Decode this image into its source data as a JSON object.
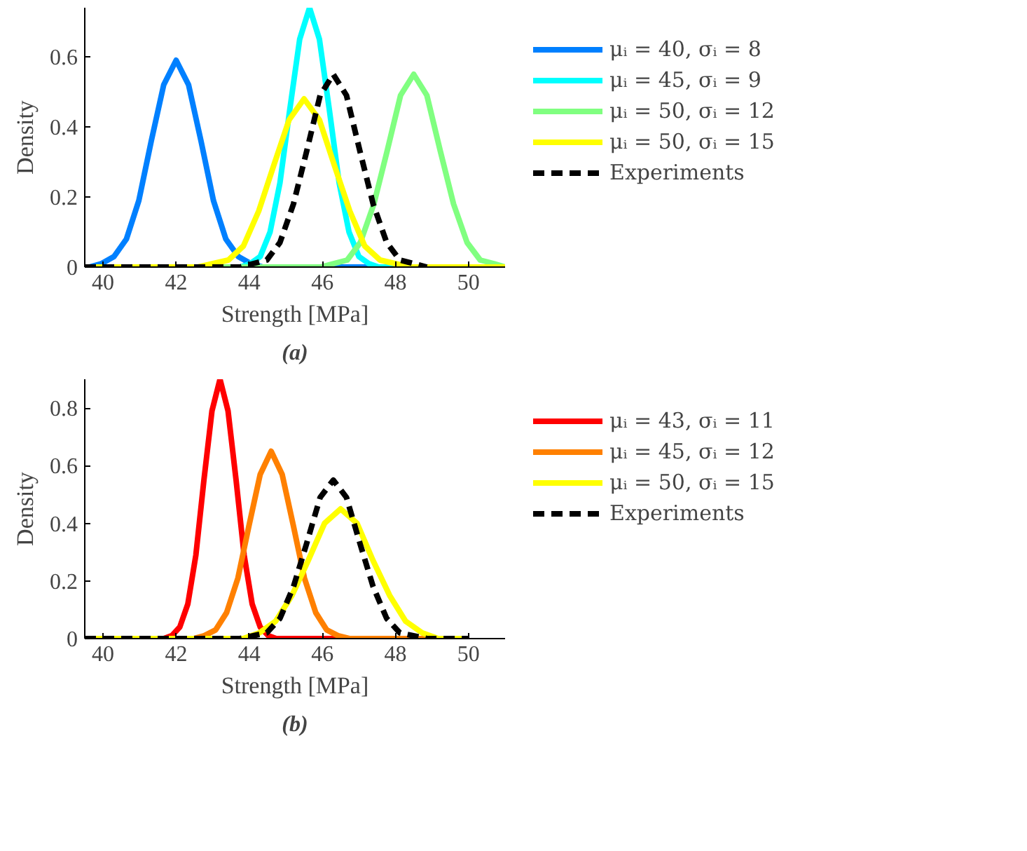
{
  "chart_data": [
    {
      "type": "line",
      "xlabel": "Strength [MPa]",
      "ylabel": "Density",
      "annotations": [
        "(a)"
      ],
      "xlim": [
        39.5,
        51
      ],
      "ylim": [
        0,
        0.74
      ],
      "xticks": [
        40,
        42,
        44,
        46,
        48,
        50
      ],
      "yticks": [
        0,
        0.2,
        0.4,
        0.6
      ],
      "grid": false,
      "legend": "right",
      "series": [
        {
          "name": "μᵢ = 40, σᵢ = 8",
          "color": "#0080ff",
          "x": [
            39.5,
            39.62,
            39.96,
            40.3,
            40.64,
            40.98,
            41.32,
            41.66,
            42,
            42.34,
            42.68,
            43.02,
            43.36,
            43.7,
            44.04,
            44.38,
            51
          ],
          "values": [
            0,
            0,
            0.01,
            0.03,
            0.08,
            0.19,
            0.36,
            0.52,
            0.59,
            0.52,
            0.36,
            0.19,
            0.08,
            0.03,
            0.01,
            0,
            0
          ]
        },
        {
          "name": "μᵢ = 45, σᵢ = 9",
          "color": "#00ffff",
          "x": [
            39.5,
            43.76,
            44.03,
            44.3,
            44.57,
            44.84,
            45.11,
            45.38,
            45.65,
            45.92,
            46.19,
            46.46,
            46.73,
            47.0,
            47.27,
            47.54,
            51
          ],
          "values": [
            0,
            0,
            0.01,
            0.03,
            0.1,
            0.24,
            0.45,
            0.65,
            0.74,
            0.65,
            0.45,
            0.24,
            0.1,
            0.03,
            0.01,
            0,
            0
          ]
        },
        {
          "name": "μᵢ = 50, σᵢ = 12",
          "color": "#80ff80",
          "x": [
            39.5,
            45.95,
            46.31,
            46.68,
            47.04,
            47.41,
            47.77,
            48.14,
            48.5,
            48.86,
            49.23,
            49.59,
            49.96,
            50.32,
            50.69,
            51
          ],
          "values": [
            0,
            0,
            0.01,
            0.02,
            0.07,
            0.18,
            0.33,
            0.49,
            0.55,
            0.49,
            0.33,
            0.18,
            0.07,
            0.02,
            0.01,
            0
          ]
        },
        {
          "name": "μᵢ = 50, σᵢ = 15",
          "color": "#ffff00",
          "x": [
            39.5,
            42.6,
            43.01,
            43.43,
            43.84,
            44.26,
            44.67,
            45.09,
            45.5,
            45.92,
            46.33,
            46.75,
            47.16,
            47.58,
            47.99,
            48.41,
            51
          ],
          "values": [
            0,
            0,
            0.01,
            0.02,
            0.06,
            0.16,
            0.29,
            0.42,
            0.48,
            0.42,
            0.29,
            0.16,
            0.06,
            0.02,
            0.01,
            0,
            0
          ]
        },
        {
          "name": "Experiments",
          "color": "#000000",
          "line_style": "dashed",
          "x": [
            39.5,
            43.75,
            44.11,
            44.48,
            44.84,
            45.21,
            45.57,
            45.94,
            46.3,
            46.66,
            47.03,
            47.39,
            47.76,
            48.12,
            48.49,
            48.86
          ],
          "values": [
            0,
            0,
            0.01,
            0.02,
            0.07,
            0.18,
            0.33,
            0.49,
            0.55,
            0.49,
            0.33,
            0.18,
            0.07,
            0.02,
            0.01,
            0
          ]
        }
      ]
    },
    {
      "type": "line",
      "xlabel": "Strength [MPa]",
      "ylabel": "Density",
      "annotations": [
        "(b)"
      ],
      "xlim": [
        39.5,
        51
      ],
      "ylim": [
        0,
        0.9
      ],
      "xticks": [
        40,
        42,
        44,
        46,
        48,
        50
      ],
      "yticks": [
        0,
        0.2,
        0.4,
        0.6,
        0.8
      ],
      "grid": false,
      "legend": "right",
      "series": [
        {
          "name": "μᵢ = 43, σᵢ = 11",
          "color": "#ff0000",
          "x": [
            39.5,
            41.66,
            41.88,
            42.1,
            42.32,
            42.54,
            42.76,
            42.98,
            43.2,
            43.42,
            43.64,
            43.86,
            44.08,
            44.3,
            44.52,
            44.74,
            50
          ],
          "values": [
            0,
            0,
            0.01,
            0.04,
            0.12,
            0.29,
            0.55,
            0.79,
            0.9,
            0.79,
            0.55,
            0.29,
            0.12,
            0.04,
            0.01,
            0,
            0
          ]
        },
        {
          "name": "μᵢ = 45, σᵢ = 12",
          "color": "#ff8000",
          "x": [
            39.5,
            42.47,
            42.77,
            43.08,
            43.38,
            43.69,
            43.99,
            44.3,
            44.6,
            44.9,
            45.21,
            45.51,
            45.82,
            46.12,
            46.43,
            46.74,
            50
          ],
          "values": [
            0,
            0,
            0.01,
            0.03,
            0.09,
            0.21,
            0.39,
            0.57,
            0.65,
            0.57,
            0.39,
            0.21,
            0.09,
            0.03,
            0.01,
            0,
            0
          ]
        },
        {
          "name": "μᵢ = 50, σᵢ = 15",
          "color": "#ffff00",
          "x": [
            39.5,
            43.39,
            43.83,
            44.28,
            44.72,
            45.17,
            45.61,
            46.06,
            46.5,
            46.95,
            47.39,
            47.84,
            48.28,
            48.73,
            49.17,
            49.62,
            50
          ],
          "values": [
            0,
            0,
            0,
            0.02,
            0.06,
            0.15,
            0.27,
            0.4,
            0.45,
            0.4,
            0.27,
            0.15,
            0.06,
            0.02,
            0,
            0,
            0
          ]
        },
        {
          "name": "Experiments",
          "color": "#000000",
          "line_style": "dashed",
          "x": [
            39.5,
            43.75,
            44.11,
            44.48,
            44.84,
            45.21,
            45.57,
            45.94,
            46.3,
            46.66,
            47.03,
            47.39,
            47.76,
            48.12,
            48.49,
            48.86,
            50
          ],
          "values": [
            0,
            0,
            0.01,
            0.02,
            0.07,
            0.18,
            0.33,
            0.49,
            0.55,
            0.49,
            0.33,
            0.18,
            0.07,
            0.02,
            0.01,
            0,
            0
          ]
        }
      ]
    }
  ]
}
